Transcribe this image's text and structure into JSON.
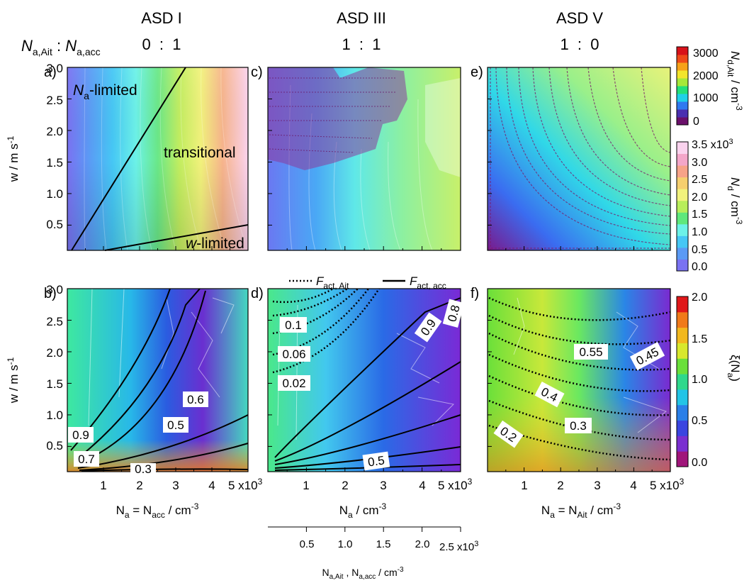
{
  "figure": {
    "ratio_label": {
      "main1": "N",
      "sub1": "a,Ait",
      "colon": " : ",
      "main2": "N",
      "sub2": "a,acc"
    },
    "columns": [
      {
        "title": "ASD I",
        "ratio": "0  :  1"
      },
      {
        "title": "ASD III",
        "ratio": "1  :  1"
      },
      {
        "title": "ASD V",
        "ratio": "1  :  0"
      }
    ],
    "panel_letters": [
      "a)",
      "b)",
      "c)",
      "d)",
      "e)",
      "f)"
    ],
    "y_label": {
      "text": "w / m s",
      "sup": "-1"
    },
    "y_ticks": [
      "0.5",
      "1.0",
      "1.5",
      "2.0",
      "2.5",
      "3.0"
    ],
    "x_ticks": [
      "1",
      "2",
      "3",
      "4"
    ],
    "x_last_tick": {
      "num": "5 x10",
      "sup": "3"
    },
    "x_labels": [
      {
        "pre": "N",
        "sub": "a",
        "mid": " = N",
        "sub2": "acc",
        "post": " / cm",
        "sup": "-3"
      },
      {
        "pre": "N",
        "sub": "a",
        "mid": "",
        "sub2": "",
        "post": " / cm",
        "sup": "-3"
      },
      {
        "pre": "N",
        "sub": "a",
        "mid": " = N",
        "sub2": "Ait",
        "post": "  / cm",
        "sup": "-3"
      }
    ],
    "secondary_axis": {
      "ticks": [
        "0.5",
        "1.0",
        "1.5",
        "2.0"
      ],
      "last_tick": {
        "num": "2.5 x10",
        "sup": "3"
      },
      "label": {
        "p1": "N",
        "s1": "a,Ait",
        "mid": " , N",
        "s2": "a,acc",
        "post": " / cm",
        "sup": "-3"
      }
    },
    "regime_labels": {
      "na_limited": {
        "main": "N",
        "sub": "a",
        "rest": "-limited"
      },
      "transitional": "transitional",
      "w_limited": {
        "italic": "w",
        "rest": "-limited"
      }
    },
    "legend_d": {
      "dotted": {
        "main": "F",
        "sub": "act, Ait"
      },
      "solid": {
        "main": "F",
        "sub": "act, acc"
      }
    },
    "contour_labels": {
      "b": [
        "0.9",
        "0.7",
        "0.6",
        "0.5",
        "0.3"
      ],
      "d": [
        "0.1",
        "0.06",
        "0.02",
        "0.9",
        "0.8",
        "0.5"
      ],
      "f": [
        "0.55",
        "0.45",
        "0.4",
        "0.3",
        "0.2"
      ]
    },
    "colorbars": [
      {
        "label": {
          "main": "N",
          "sub": "d,Ait",
          "post": " / cm",
          "sup": "-3"
        },
        "ticks": [
          "0",
          "1000",
          "2000",
          "3000"
        ],
        "range": [
          0,
          3500
        ],
        "colors": [
          "#6a0f6a",
          "#4a2fb0",
          "#2f79f0",
          "#1fd0e8",
          "#23e07a",
          "#a6e83a",
          "#f3e52b",
          "#f6a21a",
          "#ee4a1a",
          "#d8121a"
        ]
      },
      {
        "label": {
          "main": "N",
          "sub": "d",
          "post": " / cm",
          "sup": "-3"
        },
        "ticks": [
          "0.0",
          "0.5",
          "1.0",
          "1.5",
          "2.0",
          "2.5",
          "3.0"
        ],
        "top_tick": {
          "num": "3.5 x10",
          "sup": "3"
        },
        "range": [
          0,
          3500
        ],
        "colors": [
          "#7a72f2",
          "#5b9af5",
          "#46c7f5",
          "#6cf2e8",
          "#5fe87c",
          "#b8ee5a",
          "#f2f27c",
          "#f6cf6e",
          "#f7a388",
          "#f4a6c9",
          "#fbd3ee"
        ]
      },
      {
        "label": {
          "main": "ξ(N",
          "sub": "a",
          "post": ")",
          "sup": ""
        },
        "ticks": [
          "0.0",
          "0.5",
          "1.0",
          "1.5",
          "2.0"
        ],
        "range": [
          0,
          2
        ],
        "colors": [
          "#a0157a",
          "#7a2fd0",
          "#3a45e0",
          "#2a7fe8",
          "#22c4e6",
          "#2fd88c",
          "#6ae03a",
          "#d8e82c",
          "#f2b81e",
          "#f07a1a",
          "#e0181a"
        ]
      }
    ]
  },
  "chart_data": [
    {
      "panel": "a",
      "type": "heatmap",
      "title": "ASD I",
      "xlabel": "N_a = N_acc / cm^-3",
      "ylabel": "w / m s^-1",
      "xlim": [
        0,
        5000
      ],
      "ylim": [
        0.1,
        3.0
      ],
      "colorbar": "N_d / cm^-3",
      "regime_boundaries": [
        {
          "x": [
            0,
            2500
          ],
          "y": [
            0.1,
            3.0
          ]
        },
        {
          "x": [
            250,
            5000
          ],
          "y": [
            0.1,
            0.5
          ]
        }
      ],
      "annotations": [
        "N_a-limited",
        "transitional",
        "w-limited"
      ]
    },
    {
      "panel": "b",
      "type": "heatmap",
      "xlabel": "N_a = N_acc / cm^-3",
      "ylabel": "w / m s^-1",
      "xlim": [
        0,
        5000
      ],
      "ylim": [
        0.1,
        3.0
      ],
      "colorbar": "ξ(N_a)",
      "contour_labels": [
        0.9,
        0.7,
        0.6,
        0.5,
        0.3
      ]
    },
    {
      "panel": "c",
      "type": "heatmap",
      "title": "ASD III",
      "xlim": [
        0,
        5000
      ],
      "ylim": [
        0.1,
        3.0
      ],
      "colorbar": "N_d / cm^-3 with N_d,Ait overlay"
    },
    {
      "panel": "d",
      "type": "heatmap",
      "xlabel": "N_a / cm^-3",
      "xlim": [
        0,
        5000
      ],
      "ylim": [
        0.1,
        3.0
      ],
      "colorbar": "ξ(N_a)",
      "secondary_x": {
        "label": "N_a,Ait , N_a,acc / cm^-3",
        "lim": [
          0,
          2500
        ]
      },
      "legend": [
        "F_act, Ait",
        "F_act, acc"
      ],
      "contour_labels_dotted": [
        0.1,
        0.06,
        0.02
      ],
      "contour_labels_solid": [
        0.9,
        0.8,
        0.5
      ]
    },
    {
      "panel": "e",
      "type": "heatmap",
      "title": "ASD V",
      "xlim": [
        0,
        5000
      ],
      "ylim": [
        0.1,
        3.0
      ],
      "colorbar": "N_d,Ait / cm^-3"
    },
    {
      "panel": "f",
      "type": "heatmap",
      "xlabel": "N_a = N_Ait / cm^-3",
      "xlim": [
        0,
        5000
      ],
      "ylim": [
        0.1,
        3.0
      ],
      "colorbar": "ξ(N_a)",
      "contour_labels": [
        0.55,
        0.45,
        0.4,
        0.3,
        0.2
      ]
    }
  ]
}
